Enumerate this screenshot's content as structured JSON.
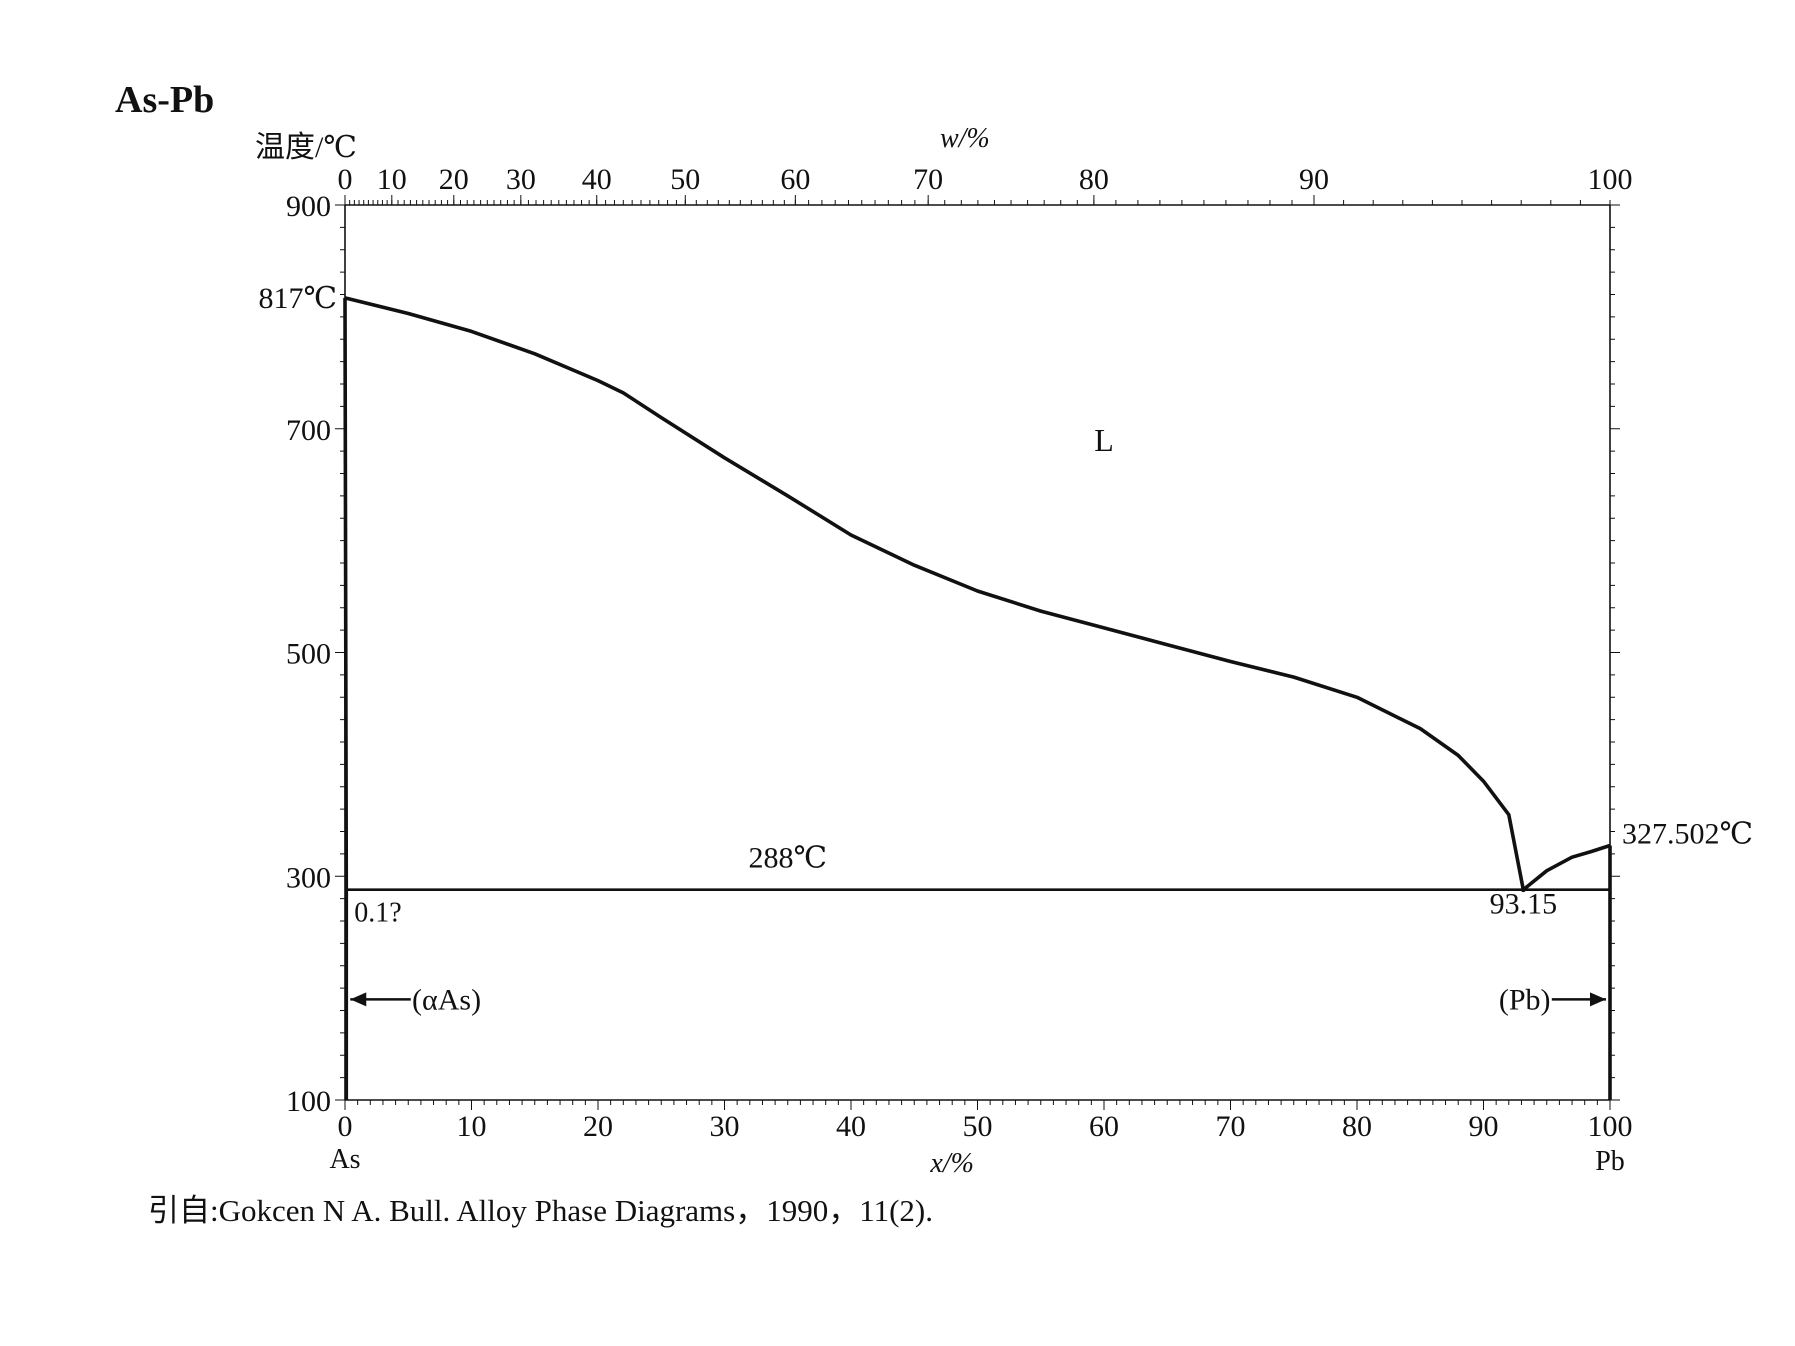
{
  "title": "As-Pb",
  "citation": "引自:Gokcen N A. Bull. Alloy Phase Diagrams，1990，11(2).",
  "chart_data": {
    "type": "line",
    "title": "As-Pb",
    "ylabel": "温度/℃",
    "xlabel": "x/%",
    "x2label": "w/%",
    "ylim": [
      100,
      900
    ],
    "xlim": [
      0,
      100
    ],
    "y_ticks": [
      "100",
      "300",
      "500",
      "700",
      "900"
    ],
    "x_ticks": [
      "0",
      "10",
      "20",
      "30",
      "40",
      "50",
      "60",
      "70",
      "80",
      "90",
      "100"
    ],
    "x2_ticks": [
      "0",
      "10",
      "20",
      "30",
      "40",
      "50",
      "60",
      "70",
      "80",
      "90",
      "100"
    ],
    "x2_tick_positions_at": [
      0,
      3.7,
      8.6,
      13.9,
      19.9,
      26.9,
      35.6,
      46.1,
      59.2,
      76.6,
      100
    ],
    "x_end_labels": {
      "left": "As",
      "right": "Pb"
    },
    "series": [
      {
        "name": "",
        "role": "liquidus",
        "x": [
          0,
          5,
          10,
          15,
          20,
          22,
          25,
          30,
          35,
          40,
          45,
          50,
          55,
          60,
          65,
          70,
          75,
          80,
          85,
          88,
          90,
          92,
          93.15
        ],
        "y": [
          817,
          803,
          787,
          767,
          743,
          732,
          710,
          674,
          640,
          605,
          578,
          555,
          537,
          522,
          507,
          492,
          478,
          460,
          432,
          408,
          385,
          355,
          288
        ]
      },
      {
        "name": "",
        "role": "liquidus-Pb",
        "x": [
          93.15,
          95,
          97,
          98.5,
          100
        ],
        "y": [
          288,
          305,
          317,
          322,
          327.502
        ]
      },
      {
        "name": "",
        "role": "eutectic",
        "x": [
          0.1,
          100
        ],
        "y": [
          288,
          288
        ]
      },
      {
        "name": "",
        "role": "solidus-As",
        "x": [
          0,
          0.1,
          0.1
        ],
        "y": [
          817,
          288,
          100
        ]
      },
      {
        "name": "",
        "role": "solidus-Pb",
        "x": [
          100,
          100
        ],
        "y": [
          327.502,
          100
        ]
      }
    ],
    "annotations": [
      {
        "text": "817℃",
        "x": 0,
        "y": 817
      },
      {
        "text": "L",
        "x": 60,
        "y": 680
      },
      {
        "text": "288℃",
        "x": 35,
        "y": 312
      },
      {
        "text": "0.1?",
        "x": 2.5,
        "y": 268
      },
      {
        "text": "93.15",
        "x": 93.15,
        "y": 268
      },
      {
        "text": "327.502℃",
        "x": 100,
        "y": 327.502
      },
      {
        "text": "(αAs)",
        "x": 8,
        "y": 190
      },
      {
        "text": "(Pb)",
        "x": 92,
        "y": 190
      }
    ],
    "grid": false,
    "legend": "none"
  }
}
